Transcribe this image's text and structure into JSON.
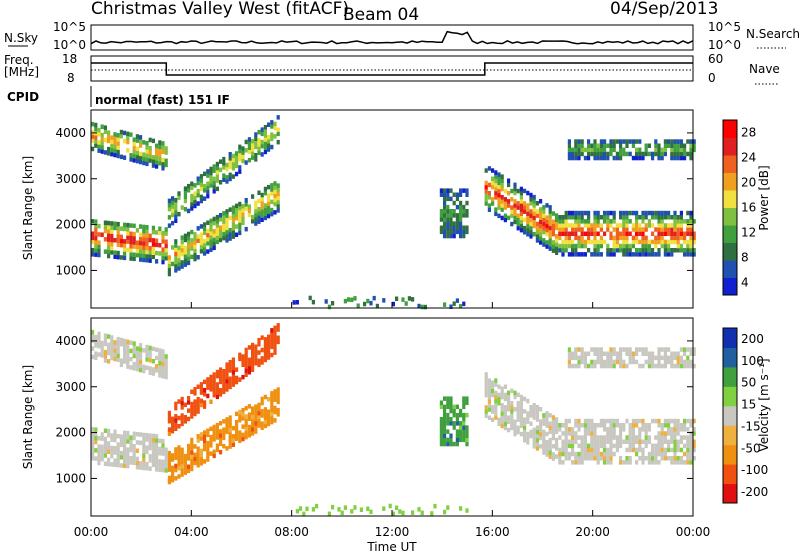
{
  "header": {
    "station": "Christmas Valley West (fitACF)",
    "beam": "Beam 04",
    "date": "04/Sep/2013"
  },
  "top_panels": {
    "nsky_label": "N.Sky",
    "nsearch_label": "N.Search",
    "nsky_ticks": [
      "10^5",
      "10^0"
    ],
    "nsky_right_ticks": [
      "10^5",
      "10^0"
    ],
    "freq_label": "Freq.",
    "freq_unit": "[MHz]",
    "freq_ticks": [
      "18",
      "8"
    ],
    "nave_ticks": [
      "60",
      "0"
    ],
    "nave_label": "Nave",
    "cpid_label": "CPID",
    "cpid_value": "normal (fast) 151 IF"
  },
  "chart_data": [
    {
      "type": "heatmap",
      "title": "",
      "ylabel": "Slant Range [km]",
      "y_ticks": [
        "4000",
        "3000",
        "2000",
        "1000"
      ],
      "ylim": [
        180,
        4500
      ],
      "colorbar": {
        "label": "Power [dB]",
        "ticks": [
          "28",
          "24",
          "20",
          "16",
          "12",
          "8",
          "4"
        ],
        "range": [
          0,
          30
        ],
        "colors": [
          "#1020d0",
          "#2050b0",
          "#307040",
          "#40a040",
          "#80c040",
          "#f0e040",
          "#f0a020",
          "#f06020",
          "#e02020",
          "#ff0000"
        ]
      }
    },
    {
      "type": "heatmap",
      "title": "",
      "ylabel": "Slant Range [km]",
      "y_ticks": [
        "4000",
        "3000",
        "2000",
        "1000"
      ],
      "ylim": [
        180,
        4500
      ],
      "xlabel": "Time UT",
      "x_ticks": [
        "00:00",
        "04:00",
        "08:00",
        "12:00",
        "16:00",
        "20:00",
        "00:00"
      ],
      "colorbar": {
        "label": "Velocity [m s⁻¹]",
        "ticks": [
          "200",
          "100",
          "50",
          "15",
          "-15",
          "-50",
          "-100",
          "-200"
        ],
        "range": [
          -250,
          250
        ],
        "colors": [
          "#e01010",
          "#f05010",
          "#f09010",
          "#f0b040",
          "#c8c8c0",
          "#80d040",
          "#40a040",
          "#2060a0",
          "#1030b0"
        ]
      }
    }
  ]
}
